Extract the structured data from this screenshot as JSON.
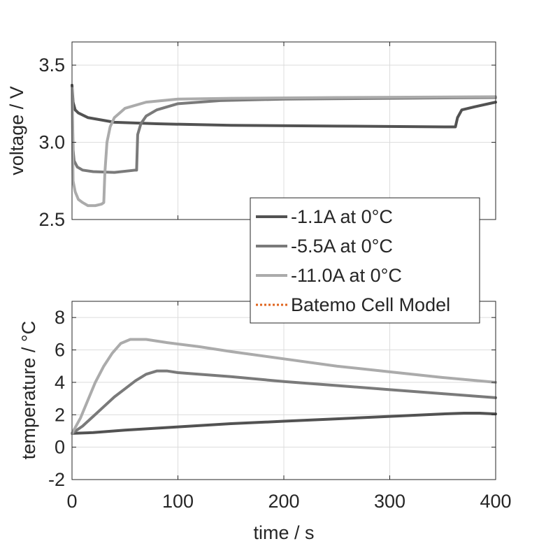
{
  "chart_data": [
    {
      "type": "line",
      "ylabel": "voltage / V",
      "xlabel": "",
      "xlim": [
        0,
        400
      ],
      "ylim": [
        2.5,
        3.65
      ],
      "grid": true,
      "x_ticks": [
        0,
        100,
        200,
        300,
        400
      ],
      "y_ticks": [
        2.5,
        3.0,
        3.5
      ],
      "y_tick_labels": [
        "2.5",
        "3.0",
        "3.5"
      ],
      "series": [
        {
          "name": "-1.1A at 0°C",
          "color": "#525252",
          "points": [
            [
              0,
              3.37
            ],
            [
              1,
              3.26
            ],
            [
              3,
              3.21
            ],
            [
              6,
              3.19
            ],
            [
              15,
              3.16
            ],
            [
              40,
              3.13
            ],
            [
              80,
              3.12
            ],
            [
              150,
              3.11
            ],
            [
              250,
              3.105
            ],
            [
              355,
              3.1
            ],
            [
              362,
              3.1
            ],
            [
              364,
              3.16
            ],
            [
              368,
              3.21
            ],
            [
              380,
              3.23
            ],
            [
              400,
              3.26
            ]
          ]
        },
        {
          "name": "-5.5A at 0°C",
          "color": "#7a7a7a",
          "points": [
            [
              0,
              3.35
            ],
            [
              1,
              2.95
            ],
            [
              2,
              2.88
            ],
            [
              5,
              2.84
            ],
            [
              10,
              2.82
            ],
            [
              20,
              2.81
            ],
            [
              40,
              2.805
            ],
            [
              60,
              2.82
            ],
            [
              61,
              2.82
            ],
            [
              62,
              3.05
            ],
            [
              65,
              3.12
            ],
            [
              70,
              3.17
            ],
            [
              80,
              3.21
            ],
            [
              100,
              3.25
            ],
            [
              140,
              3.27
            ],
            [
              200,
              3.28
            ],
            [
              300,
              3.285
            ],
            [
              400,
              3.29
            ]
          ]
        },
        {
          "name": "-11.0A at 0°C",
          "color": "#ababab",
          "points": [
            [
              0,
              3.35
            ],
            [
              1,
              2.75
            ],
            [
              3,
              2.68
            ],
            [
              6,
              2.63
            ],
            [
              10,
              2.61
            ],
            [
              15,
              2.59
            ],
            [
              22,
              2.59
            ],
            [
              28,
              2.6
            ],
            [
              30,
              2.61
            ],
            [
              31,
              2.8
            ],
            [
              33,
              3.0
            ],
            [
              36,
              3.1
            ],
            [
              40,
              3.16
            ],
            [
              50,
              3.22
            ],
            [
              70,
              3.26
            ],
            [
              100,
              3.28
            ],
            [
              150,
              3.285
            ],
            [
              250,
              3.29
            ],
            [
              400,
              3.295
            ]
          ]
        },
        {
          "name": "Batemo Cell Model",
          "color": "#e0641e",
          "style": "dotted",
          "points": []
        }
      ]
    },
    {
      "type": "line",
      "ylabel": "temperature / °C",
      "xlabel": "time / s",
      "xlim": [
        0,
        400
      ],
      "ylim": [
        -2,
        9
      ],
      "grid": true,
      "x_ticks": [
        0,
        100,
        200,
        300,
        400
      ],
      "x_tick_labels": [
        "0",
        "100",
        "200",
        "300",
        "400"
      ],
      "y_ticks": [
        -2,
        0,
        2,
        4,
        6,
        8
      ],
      "y_tick_labels": [
        "-2",
        "0",
        "2",
        "4",
        "6",
        "8"
      ],
      "series": [
        {
          "name": "-1.1A at 0°C",
          "color": "#525252",
          "points": [
            [
              0,
              0.85
            ],
            [
              20,
              0.9
            ],
            [
              50,
              1.05
            ],
            [
              100,
              1.25
            ],
            [
              150,
              1.45
            ],
            [
              200,
              1.6
            ],
            [
              250,
              1.75
            ],
            [
              300,
              1.9
            ],
            [
              350,
              2.05
            ],
            [
              370,
              2.1
            ],
            [
              385,
              2.1
            ],
            [
              400,
              2.05
            ]
          ]
        },
        {
          "name": "-5.5A at 0°C",
          "color": "#7a7a7a",
          "points": [
            [
              0,
              0.85
            ],
            [
              10,
              1.3
            ],
            [
              20,
              1.9
            ],
            [
              30,
              2.5
            ],
            [
              40,
              3.1
            ],
            [
              50,
              3.6
            ],
            [
              60,
              4.1
            ],
            [
              70,
              4.5
            ],
            [
              80,
              4.7
            ],
            [
              90,
              4.7
            ],
            [
              100,
              4.6
            ],
            [
              150,
              4.35
            ],
            [
              200,
              4.05
            ],
            [
              250,
              3.8
            ],
            [
              300,
              3.55
            ],
            [
              350,
              3.3
            ],
            [
              400,
              3.05
            ]
          ]
        },
        {
          "name": "-11.0A at 0°C",
          "color": "#ababab",
          "points": [
            [
              0,
              0.85
            ],
            [
              8,
              1.8
            ],
            [
              15,
              2.9
            ],
            [
              22,
              4.0
            ],
            [
              30,
              5.0
            ],
            [
              38,
              5.8
            ],
            [
              46,
              6.4
            ],
            [
              55,
              6.65
            ],
            [
              70,
              6.65
            ],
            [
              90,
              6.45
            ],
            [
              120,
              6.2
            ],
            [
              150,
              5.9
            ],
            [
              200,
              5.45
            ],
            [
              250,
              5.0
            ],
            [
              300,
              4.65
            ],
            [
              350,
              4.3
            ],
            [
              400,
              4.0
            ]
          ]
        },
        {
          "name": "Batemo Cell Model",
          "color": "#e0641e",
          "style": "dotted",
          "points": []
        }
      ]
    }
  ],
  "legend": {
    "placement": "center-right",
    "entries": [
      {
        "label": "-1.1A at 0°C",
        "color": "#525252",
        "style": "solid"
      },
      {
        "label": "-5.5A at 0°C",
        "color": "#7a7a7a",
        "style": "solid"
      },
      {
        "label": "-11.0A at 0°C",
        "color": "#ababab",
        "style": "solid"
      },
      {
        "label": "Batemo Cell Model",
        "color": "#e0641e",
        "style": "dotted"
      }
    ]
  }
}
